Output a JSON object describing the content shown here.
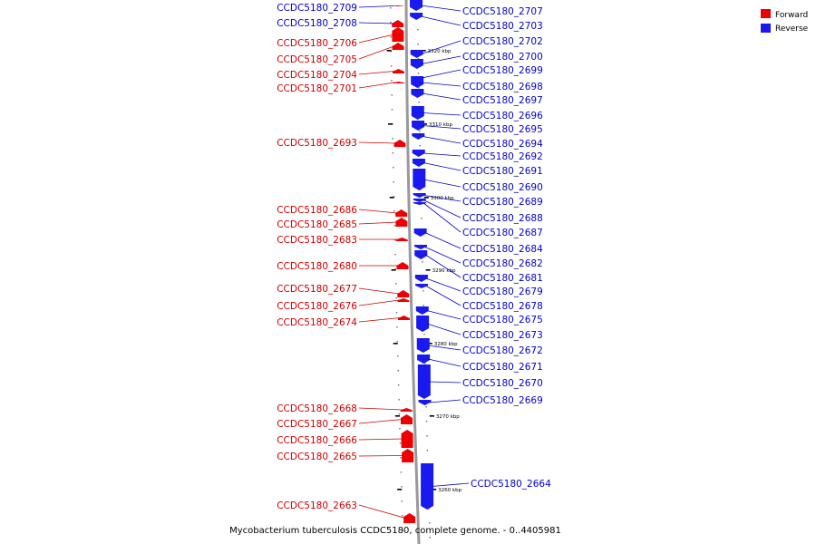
{
  "caption": "Mycobacterium tuberculosis CCDC5180, complete genome. - 0..4405981",
  "legend": [
    {
      "label": "Forward",
      "color": "#ee0000"
    },
    {
      "label": "Reverse",
      "color": "#1a1aee"
    }
  ],
  "colors": {
    "forward": "#ee0000",
    "forward_label": "#cc0000",
    "reverse": "#1a1aee",
    "reverse_label": "#0000cc",
    "backbone": "#999999"
  },
  "scale_ticks": [
    "3320 kbp",
    "3310 kbp",
    "3300 kbp",
    "3290 kbp",
    "3280 kbp",
    "3270 kbp",
    "3260 kbp"
  ],
  "forward_genes": [
    "CCDC5180_2709",
    "CCDC5180_2708",
    "CCDC5180_2706",
    "CCDC5180_2705",
    "CCDC5180_2704",
    "CCDC5180_2701",
    "CCDC5180_2693",
    "CCDC5180_2686",
    "CCDC5180_2685",
    "CCDC5180_2683",
    "CCDC5180_2680",
    "CCDC5180_2677",
    "CCDC5180_2676",
    "CCDC5180_2674",
    "CCDC5180_2668",
    "CCDC5180_2667",
    "CCDC5180_2666",
    "CCDC5180_2665",
    "CCDC5180_2663"
  ],
  "reverse_genes": [
    "CCDC5180_2707",
    "CCDC5180_2703",
    "CCDC5180_2702",
    "CCDC5180_2700",
    "CCDC5180_2699",
    "CCDC5180_2698",
    "CCDC5180_2697",
    "CCDC5180_2696",
    "CCDC5180_2695",
    "CCDC5180_2694",
    "CCDC5180_2692",
    "CCDC5180_2691",
    "CCDC5180_2690",
    "CCDC5180_2689",
    "CCDC5180_2688",
    "CCDC5180_2687",
    "CCDC5180_2684",
    "CCDC5180_2682",
    "CCDC5180_2681",
    "CCDC5180_2679",
    "CCDC5180_2678",
    "CCDC5180_2675",
    "CCDC5180_2673",
    "CCDC5180_2672",
    "CCDC5180_2671",
    "CCDC5180_2670",
    "CCDC5180_2669",
    "CCDC5180_2664"
  ]
}
